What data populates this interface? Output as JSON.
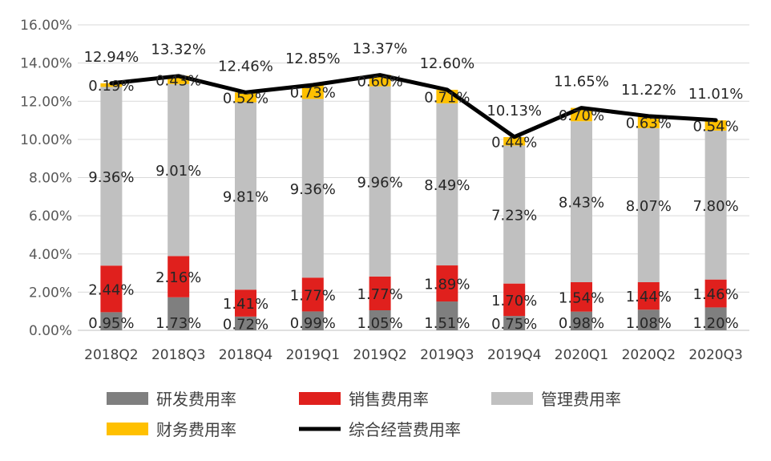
{
  "chart_data": {
    "type": "bar",
    "stacked": true,
    "categories": [
      "2018Q2",
      "2018Q3",
      "2018Q4",
      "2019Q1",
      "2019Q2",
      "2019Q3",
      "2019Q4",
      "2020Q1",
      "2020Q2",
      "2020Q3"
    ],
    "ylim": [
      0,
      16
    ],
    "y_ticks": [
      "0.00%",
      "2.00%",
      "4.00%",
      "6.00%",
      "8.00%",
      "10.00%",
      "12.00%",
      "14.00%",
      "16.00%"
    ],
    "grid": true,
    "legend_position": "bottom",
    "series": [
      {
        "name": "研发费用率",
        "color": "#7f7f7f",
        "values": [
          0.95,
          1.73,
          0.72,
          0.99,
          1.05,
          1.51,
          0.75,
          0.98,
          1.08,
          1.2
        ],
        "labels": [
          "0.95%",
          "1.73%",
          "0.72%",
          "0.99%",
          "1.05%",
          "1.51%",
          "0.75%",
          "0.98%",
          "1.08%",
          "1.20%"
        ]
      },
      {
        "name": "销售费用率",
        "color": "#e0201d",
        "values": [
          2.44,
          2.16,
          1.41,
          1.77,
          1.77,
          1.89,
          1.7,
          1.54,
          1.44,
          1.46
        ],
        "labels": [
          "2.44%",
          "2.16%",
          "1.41%",
          "1.77%",
          "1.77%",
          "1.89%",
          "1.70%",
          "1.54%",
          "1.44%",
          "1.46%"
        ]
      },
      {
        "name": "管理费用率",
        "color": "#c0c0c0",
        "values": [
          9.36,
          9.01,
          9.81,
          9.36,
          9.96,
          8.49,
          7.23,
          8.43,
          8.07,
          7.8
        ],
        "labels": [
          "9.36%",
          "9.01%",
          "9.81%",
          "9.36%",
          "9.96%",
          "8.49%",
          "7.23%",
          "8.43%",
          "8.07%",
          "7.80%"
        ]
      },
      {
        "name": "财务费用率",
        "color": "#ffc000",
        "values": [
          0.19,
          0.43,
          0.52,
          0.73,
          0.6,
          0.71,
          0.44,
          0.7,
          0.63,
          0.54
        ],
        "labels": [
          "0.19%",
          "0.43%",
          "0.52%",
          "0.73%",
          "0.60%",
          "0.71%",
          "0.44%",
          "0.70%",
          "0.63%",
          "0.54%"
        ]
      }
    ],
    "line": {
      "name": "综合经营费用率",
      "color": "#000000",
      "values": [
        12.94,
        13.32,
        12.46,
        12.85,
        13.37,
        12.6,
        10.13,
        11.65,
        11.22,
        11.01
      ],
      "labels": [
        "12.94%",
        "13.32%",
        "12.46%",
        "12.85%",
        "13.37%",
        "12.60%",
        "10.13%",
        "11.65%",
        "11.22%",
        "11.01%"
      ]
    }
  }
}
